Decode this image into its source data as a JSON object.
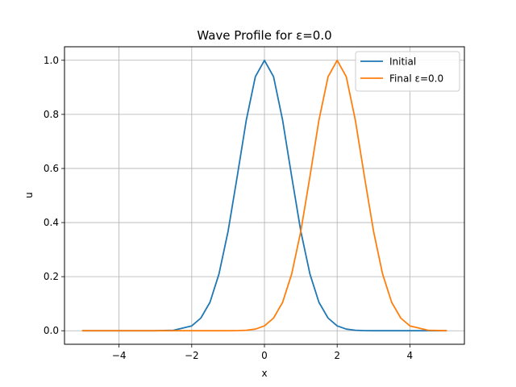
{
  "chart_data": {
    "type": "line",
    "title": "Wave Profile for ε=0.0",
    "xlabel": "x",
    "ylabel": "u",
    "xlim": [
      -5.5,
      5.5
    ],
    "ylim": [
      -0.05,
      1.05
    ],
    "x_ticks": [
      -4,
      -2,
      0,
      2,
      4
    ],
    "x_tick_labels": [
      "−4",
      "−2",
      "0",
      "2",
      "4"
    ],
    "y_ticks": [
      0.0,
      0.2,
      0.4,
      0.6,
      0.8,
      1.0
    ],
    "y_tick_labels": [
      "0.0",
      "0.2",
      "0.4",
      "0.6",
      "0.8",
      "1.0"
    ],
    "grid": true,
    "legend_position": "top-right",
    "x": [
      -5.0,
      -4.5,
      -4.0,
      -3.5,
      -3.0,
      -2.5,
      -2.0,
      -1.75,
      -1.5,
      -1.25,
      -1.0,
      -0.75,
      -0.5,
      -0.25,
      0.0,
      0.25,
      0.5,
      0.75,
      1.0,
      1.25,
      1.5,
      1.75,
      2.0,
      2.25,
      2.5,
      2.75,
      3.0,
      3.25,
      3.5,
      3.75,
      4.0,
      4.5,
      5.0
    ],
    "series": [
      {
        "name": "Initial",
        "color": "#1f77b4",
        "values": [
          0.0,
          0.0,
          0.0,
          0.0,
          0.0001,
          0.002,
          0.018,
          0.047,
          0.105,
          0.21,
          0.368,
          0.57,
          0.779,
          0.939,
          1.0,
          0.939,
          0.779,
          0.57,
          0.368,
          0.21,
          0.105,
          0.047,
          0.018,
          0.006,
          0.002,
          0.0005,
          0.0001,
          0.0,
          0.0,
          0.0,
          0.0,
          0.0,
          0.0
        ]
      },
      {
        "name": "Final ε=0.0",
        "color": "#ff7f0e",
        "values": [
          0.0,
          0.0,
          0.0,
          0.0,
          0.0,
          0.0,
          0.0,
          0.0,
          0.0,
          0.0,
          0.0001,
          0.0005,
          0.002,
          0.006,
          0.018,
          0.047,
          0.105,
          0.21,
          0.368,
          0.57,
          0.779,
          0.939,
          1.0,
          0.939,
          0.779,
          0.57,
          0.368,
          0.21,
          0.105,
          0.047,
          0.018,
          0.002,
          0.0001
        ]
      }
    ]
  }
}
